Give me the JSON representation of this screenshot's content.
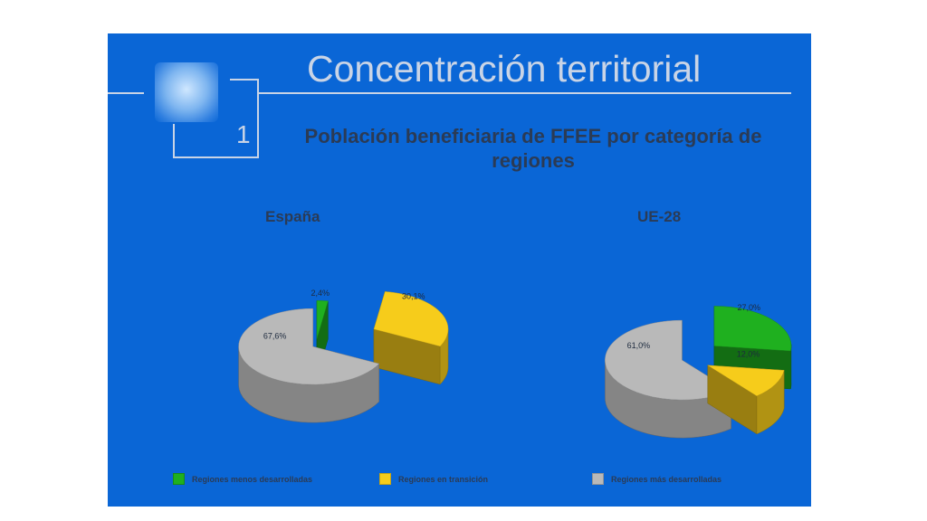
{
  "header": {
    "title": "Concentración territorial",
    "number": "1",
    "subtitle": "Población beneficiaria de FFEE  por categoría de regiones",
    "logo_icon": "europe-map-icon"
  },
  "colors": {
    "background": "#0a66d6",
    "menos": "#1fb01f",
    "transicion": "#f6cc1b",
    "mas": "#b9b9b9"
  },
  "legend": [
    {
      "label": "Regiones menos desarrolladas",
      "color": "#1fb01f"
    },
    {
      "label": "Regiones en transición",
      "color": "#f6cc1b"
    },
    {
      "label": "Regiones más desarrolladas",
      "color": "#b9b9b9"
    }
  ],
  "chart_data": [
    {
      "type": "pie",
      "title": "España",
      "categories": [
        "Regiones menos desarrolladas",
        "Regiones en transición",
        "Regiones más desarrolladas"
      ],
      "values": [
        2.4,
        30.1,
        67.6
      ],
      "labels": [
        "2,4%",
        "30,1%",
        "67,6%"
      ]
    },
    {
      "type": "pie",
      "title": "UE-28",
      "categories": [
        "Regiones menos desarrolladas",
        "Regiones en transición",
        "Regiones más desarrolladas"
      ],
      "values": [
        27.0,
        12.0,
        61.0
      ],
      "labels": [
        "27,0%",
        "12,0%",
        "61,0%"
      ]
    }
  ]
}
